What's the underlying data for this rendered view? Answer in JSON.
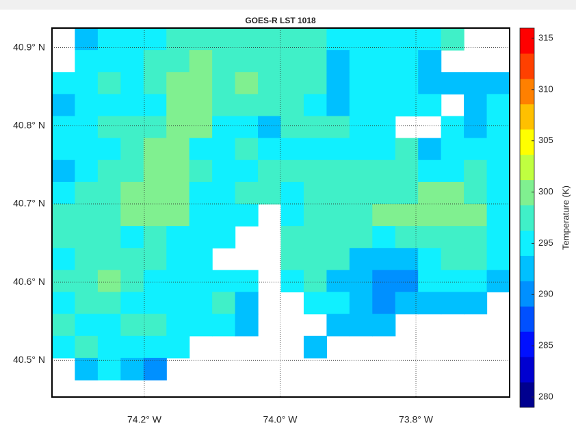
{
  "chart_data": {
    "type": "heatmap",
    "title": "GOES-R LST 1018",
    "xlim": [
      -74.336,
      -73.662
    ],
    "xticks": [
      {
        "value": -74.2,
        "label": "74.2° W"
      },
      {
        "value": -74.0,
        "label": "74.0° W"
      },
      {
        "value": -73.8,
        "label": "73.8° W"
      }
    ],
    "ylim": [
      40.453,
      40.925
    ],
    "yticks": [
      {
        "value": 40.5,
        "label": "40.5° N"
      },
      {
        "value": 40.6,
        "label": "40.6° N"
      },
      {
        "value": 40.7,
        "label": "40.7° N"
      },
      {
        "value": 40.8,
        "label": "40.8° N"
      },
      {
        "value": 40.9,
        "label": "40.9° N"
      }
    ],
    "grid": true,
    "colorbar_label": "Temperature (K)",
    "clim": [
      279,
      316
    ],
    "cticks": [
      280,
      285,
      290,
      295,
      300,
      305,
      310,
      315
    ],
    "colormap": [
      "#00008f",
      "#0000d0",
      "#0010ff",
      "#0050ff",
      "#0090ff",
      "#00c0ff",
      "#10f0ff",
      "#40f0c8",
      "#80f090",
      "#c0ff40",
      "#ffff00",
      "#ffc000",
      "#ff8000",
      "#ff4000",
      "#ff0000"
    ],
    "z": [
      [
        null,
        292.5,
        295,
        295,
        295,
        297.5,
        297.5,
        297.5,
        297.5,
        297.5,
        297.5,
        297.5,
        295,
        295,
        295,
        295,
        295,
        297.5,
        null,
        null
      ],
      [
        null,
        295,
        295,
        295,
        297.5,
        297.5,
        300,
        297.5,
        297.5,
        297.5,
        297.5,
        297.5,
        292.5,
        295,
        295,
        295,
        292.5,
        null,
        null,
        null
      ],
      [
        295,
        295,
        297.5,
        295,
        297.5,
        300,
        300,
        297.5,
        300,
        297.5,
        297.5,
        297.5,
        292.5,
        295,
        295,
        295,
        292.5,
        292.5,
        292.5,
        292.5
      ],
      [
        292.5,
        295,
        295,
        295,
        295,
        300,
        300,
        297.5,
        297.5,
        297.5,
        297.5,
        295,
        292.5,
        295,
        295,
        295,
        295,
        null,
        292.5,
        295
      ],
      [
        295,
        295,
        297.5,
        297.5,
        297.5,
        300,
        300,
        295,
        295,
        292.5,
        297.5,
        297.5,
        297.5,
        295,
        295,
        null,
        null,
        295,
        292.5,
        295
      ],
      [
        295,
        295,
        295,
        297.5,
        300,
        300,
        295,
        295,
        297.5,
        295,
        295,
        295,
        295,
        295,
        295,
        297.5,
        292.5,
        295,
        295,
        295
      ],
      [
        292.5,
        295,
        297.5,
        297.5,
        300,
        300,
        297.5,
        295,
        295,
        297.5,
        297.5,
        297.5,
        297.5,
        297.5,
        297.5,
        297.5,
        295,
        295,
        297.5,
        295
      ],
      [
        295,
        297.5,
        297.5,
        300,
        300,
        300,
        295,
        295,
        297.5,
        297.5,
        295,
        297.5,
        297.5,
        297.5,
        297.5,
        297.5,
        300,
        300,
        297.5,
        295
      ],
      [
        297.5,
        297.5,
        297.5,
        300,
        300,
        300,
        295,
        295,
        295,
        null,
        295,
        297.5,
        297.5,
        297.5,
        300,
        300,
        300,
        300,
        300,
        295
      ],
      [
        297.5,
        297.5,
        297.5,
        295,
        297.5,
        295,
        295,
        295,
        null,
        null,
        297.5,
        297.5,
        297.5,
        297.5,
        295,
        297.5,
        297.5,
        297.5,
        297.5,
        295
      ],
      [
        295,
        297.5,
        297.5,
        297.5,
        297.5,
        295,
        295,
        null,
        null,
        null,
        297.5,
        297.5,
        297.5,
        292.5,
        292.5,
        292.5,
        295,
        297.5,
        297.5,
        295
      ],
      [
        297.5,
        297.5,
        300,
        297.5,
        295,
        295,
        295,
        295,
        295,
        null,
        295,
        297.5,
        292.5,
        292.5,
        290,
        290,
        295,
        295,
        295,
        292.5
      ],
      [
        295,
        297.5,
        297.5,
        295,
        295,
        295,
        295,
        297.5,
        292.5,
        null,
        null,
        295,
        295,
        292.5,
        290,
        292.5,
        292.5,
        292.5,
        292.5,
        null
      ],
      [
        297.5,
        295,
        295,
        297.5,
        297.5,
        295,
        295,
        295,
        292.5,
        null,
        null,
        null,
        292.5,
        292.5,
        292.5,
        null,
        null,
        null,
        null,
        null
      ],
      [
        295,
        297.5,
        295,
        295,
        295,
        295,
        null,
        null,
        null,
        null,
        null,
        292.5,
        null,
        null,
        null,
        null,
        null,
        null,
        null,
        null
      ],
      [
        null,
        292.5,
        295,
        292.5,
        290,
        null,
        null,
        null,
        null,
        null,
        null,
        null,
        null,
        null,
        null,
        null,
        null,
        null,
        null,
        null
      ]
    ]
  }
}
